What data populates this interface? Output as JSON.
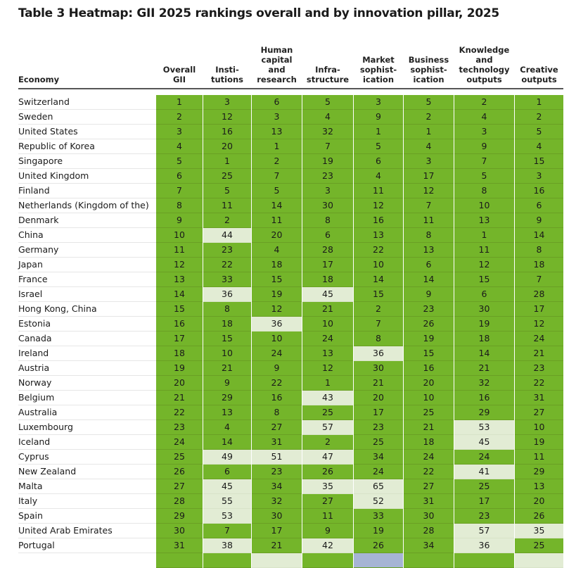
{
  "title": "Table 3 Heatmap: GII 2025 rankings overall and by innovation pillar, 2025",
  "chart_data": {
    "type": "heatmap",
    "title": "Table 3 Heatmap: GII 2025 rankings overall and by innovation pillar, 2025",
    "row_header": "Economy",
    "columns": [
      "Overall\nGII",
      "Insti-\ntutions",
      "Human\ncapital\nand\nresearch",
      "Infra-\nstructure",
      "Market\nsophist-\nication",
      "Business\nsophist-\nication",
      "Knowledge\nand\ntechnology\noutputs",
      "Creative\noutputs"
    ],
    "color_scale": {
      "top_tier": "#74b52a",
      "second_tier": "#e2ecd4",
      "third_tier": "#a6b4d4"
    },
    "rows": [
      {
        "economy": "Switzerland",
        "values": [
          1,
          3,
          6,
          5,
          3,
          5,
          2,
          1
        ]
      },
      {
        "economy": "Sweden",
        "values": [
          2,
          12,
          3,
          4,
          9,
          2,
          4,
          2
        ]
      },
      {
        "economy": "United States",
        "values": [
          3,
          16,
          13,
          32,
          1,
          1,
          3,
          5
        ]
      },
      {
        "economy": "Republic of Korea",
        "values": [
          4,
          20,
          1,
          7,
          5,
          4,
          9,
          4
        ]
      },
      {
        "economy": "Singapore",
        "values": [
          5,
          1,
          2,
          19,
          6,
          3,
          7,
          15
        ]
      },
      {
        "economy": "United Kingdom",
        "values": [
          6,
          25,
          7,
          23,
          4,
          17,
          5,
          3
        ]
      },
      {
        "economy": "Finland",
        "values": [
          7,
          5,
          5,
          3,
          11,
          12,
          8,
          16
        ]
      },
      {
        "economy": "Netherlands (Kingdom of the)",
        "values": [
          8,
          11,
          14,
          30,
          12,
          7,
          10,
          6
        ]
      },
      {
        "economy": "Denmark",
        "values": [
          9,
          2,
          11,
          8,
          16,
          11,
          13,
          9
        ]
      },
      {
        "economy": "China",
        "values": [
          10,
          44,
          20,
          6,
          13,
          8,
          1,
          14
        ]
      },
      {
        "economy": "Germany",
        "values": [
          11,
          23,
          4,
          28,
          22,
          13,
          11,
          8
        ]
      },
      {
        "economy": "Japan",
        "values": [
          12,
          22,
          18,
          17,
          10,
          6,
          12,
          18
        ]
      },
      {
        "economy": "France",
        "values": [
          13,
          33,
          15,
          18,
          14,
          14,
          15,
          7
        ]
      },
      {
        "economy": "Israel",
        "values": [
          14,
          36,
          19,
          45,
          15,
          9,
          6,
          28
        ]
      },
      {
        "economy": "Hong Kong, China",
        "values": [
          15,
          8,
          12,
          21,
          2,
          23,
          30,
          17
        ]
      },
      {
        "economy": "Estonia",
        "values": [
          16,
          18,
          36,
          10,
          7,
          26,
          19,
          12
        ]
      },
      {
        "economy": "Canada",
        "values": [
          17,
          15,
          10,
          24,
          8,
          19,
          18,
          24
        ]
      },
      {
        "economy": "Ireland",
        "values": [
          18,
          10,
          24,
          13,
          36,
          15,
          14,
          21
        ]
      },
      {
        "economy": "Austria",
        "values": [
          19,
          21,
          9,
          12,
          30,
          16,
          21,
          23
        ]
      },
      {
        "economy": "Norway",
        "values": [
          20,
          9,
          22,
          1,
          21,
          20,
          32,
          22
        ]
      },
      {
        "economy": "Belgium",
        "values": [
          21,
          29,
          16,
          43,
          20,
          10,
          16,
          31
        ]
      },
      {
        "economy": "Australia",
        "values": [
          22,
          13,
          8,
          25,
          17,
          25,
          29,
          27
        ]
      },
      {
        "economy": "Luxembourg",
        "values": [
          23,
          4,
          27,
          57,
          23,
          21,
          53,
          10
        ]
      },
      {
        "economy": "Iceland",
        "values": [
          24,
          14,
          31,
          2,
          25,
          18,
          45,
          19
        ]
      },
      {
        "economy": "Cyprus",
        "values": [
          25,
          49,
          51,
          47,
          34,
          24,
          24,
          11
        ]
      },
      {
        "economy": "New Zealand",
        "values": [
          26,
          6,
          23,
          26,
          24,
          22,
          41,
          29
        ]
      },
      {
        "economy": "Malta",
        "values": [
          27,
          45,
          34,
          35,
          65,
          27,
          25,
          13
        ]
      },
      {
        "economy": "Italy",
        "values": [
          28,
          55,
          32,
          27,
          52,
          31,
          17,
          20
        ]
      },
      {
        "economy": "Spain",
        "values": [
          29,
          53,
          30,
          11,
          33,
          30,
          23,
          26
        ]
      },
      {
        "economy": "United Arab Emirates",
        "values": [
          30,
          7,
          17,
          9,
          19,
          28,
          57,
          35
        ]
      },
      {
        "economy": "Portugal",
        "values": [
          31,
          38,
          21,
          42,
          26,
          34,
          36,
          25
        ]
      }
    ],
    "tiers": [
      [
        0,
        0,
        0,
        0,
        0,
        0,
        0,
        0
      ],
      [
        0,
        0,
        0,
        0,
        0,
        0,
        0,
        0
      ],
      [
        0,
        0,
        0,
        0,
        0,
        0,
        0,
        0
      ],
      [
        0,
        0,
        0,
        0,
        0,
        0,
        0,
        0
      ],
      [
        0,
        0,
        0,
        0,
        0,
        0,
        0,
        0
      ],
      [
        0,
        0,
        0,
        0,
        0,
        0,
        0,
        0
      ],
      [
        0,
        0,
        0,
        0,
        0,
        0,
        0,
        0
      ],
      [
        0,
        0,
        0,
        0,
        0,
        0,
        0,
        0
      ],
      [
        0,
        0,
        0,
        0,
        0,
        0,
        0,
        0
      ],
      [
        0,
        1,
        0,
        0,
        0,
        0,
        0,
        0
      ],
      [
        0,
        0,
        0,
        0,
        0,
        0,
        0,
        0
      ],
      [
        0,
        0,
        0,
        0,
        0,
        0,
        0,
        0
      ],
      [
        0,
        0,
        0,
        0,
        0,
        0,
        0,
        0
      ],
      [
        0,
        1,
        0,
        1,
        0,
        0,
        0,
        0
      ],
      [
        0,
        0,
        0,
        0,
        0,
        0,
        0,
        0
      ],
      [
        0,
        0,
        1,
        0,
        0,
        0,
        0,
        0
      ],
      [
        0,
        0,
        0,
        0,
        0,
        0,
        0,
        0
      ],
      [
        0,
        0,
        0,
        0,
        1,
        0,
        0,
        0
      ],
      [
        0,
        0,
        0,
        0,
        0,
        0,
        0,
        0
      ],
      [
        0,
        0,
        0,
        0,
        0,
        0,
        0,
        0
      ],
      [
        0,
        0,
        0,
        1,
        0,
        0,
        0,
        0
      ],
      [
        0,
        0,
        0,
        0,
        0,
        0,
        0,
        0
      ],
      [
        0,
        0,
        0,
        1,
        0,
        0,
        1,
        0
      ],
      [
        0,
        0,
        0,
        0,
        0,
        0,
        1,
        0
      ],
      [
        0,
        1,
        1,
        1,
        0,
        0,
        0,
        0
      ],
      [
        0,
        0,
        0,
        0,
        0,
        0,
        1,
        0
      ],
      [
        0,
        1,
        0,
        1,
        1,
        0,
        0,
        0
      ],
      [
        0,
        1,
        0,
        0,
        1,
        0,
        0,
        0
      ],
      [
        0,
        1,
        0,
        0,
        0,
        0,
        0,
        0
      ],
      [
        0,
        0,
        0,
        0,
        0,
        0,
        1,
        1
      ],
      [
        0,
        1,
        0,
        1,
        0,
        0,
        1,
        0
      ]
    ],
    "partial_next_row_tiers": [
      0,
      0,
      1,
      0,
      2,
      0,
      0,
      1
    ]
  }
}
